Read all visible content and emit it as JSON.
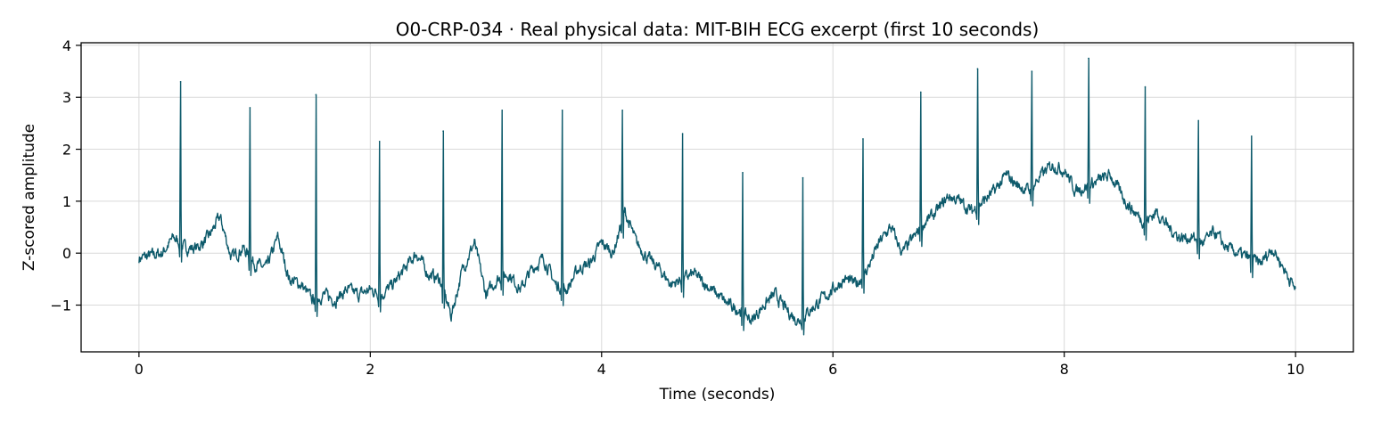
{
  "chart_data": {
    "type": "line",
    "title": "O0-CRP-034 · Real physical data: MIT-BIH ECG excerpt (first 10 seconds)",
    "xlabel": "Time (seconds)",
    "ylabel": "Z-scored amplitude",
    "xlim": [
      -0.5,
      10.5
    ],
    "ylim": [
      -1.9,
      4.05
    ],
    "grid": true,
    "line_color": "#0d5a6b",
    "x_ticks": [
      0,
      2,
      4,
      6,
      8,
      10
    ],
    "x_tick_labels": [
      "0",
      "2",
      "4",
      "6",
      "8",
      "10"
    ],
    "y_ticks": [
      -1,
      0,
      1,
      2,
      3,
      4
    ],
    "y_tick_labels": [
      "−1",
      "0",
      "1",
      "2",
      "3",
      "4"
    ],
    "baseline": {
      "x": [
        0.0,
        0.1,
        0.2,
        0.3,
        0.4,
        0.5,
        0.6,
        0.7,
        0.8,
        0.9,
        1.0,
        1.1,
        1.2,
        1.3,
        1.4,
        1.5,
        1.6,
        1.7,
        1.8,
        1.9,
        2.0,
        2.1,
        2.2,
        2.3,
        2.4,
        2.5,
        2.6,
        2.7,
        2.8,
        2.9,
        3.0,
        3.1,
        3.2,
        3.3,
        3.4,
        3.5,
        3.6,
        3.7,
        3.8,
        3.9,
        4.0,
        4.1,
        4.2,
        4.3,
        4.4,
        4.5,
        4.6,
        4.7,
        4.8,
        4.9,
        5.0,
        5.1,
        5.2,
        5.3,
        5.4,
        5.5,
        5.6,
        5.7,
        5.8,
        5.9,
        6.0,
        6.1,
        6.2,
        6.3,
        6.4,
        6.5,
        6.6,
        6.7,
        6.8,
        6.9,
        7.0,
        7.1,
        7.2,
        7.3,
        7.4,
        7.5,
        7.6,
        7.7,
        7.8,
        7.9,
        8.0,
        8.1,
        8.2,
        8.3,
        8.4,
        8.5,
        8.6,
        8.7,
        8.8,
        8.9,
        9.0,
        9.1,
        9.2,
        9.3,
        9.4,
        9.5,
        9.6,
        9.7,
        9.8,
        9.9,
        10.0
      ],
      "y": [
        -0.1,
        -0.05,
        0.0,
        0.3,
        0.1,
        0.1,
        0.3,
        0.7,
        -0.1,
        0.1,
        -0.2,
        -0.3,
        0.3,
        -0.5,
        -0.6,
        -0.9,
        -0.8,
        -0.9,
        -0.7,
        -0.8,
        -0.7,
        -0.8,
        -0.6,
        -0.3,
        0.0,
        -0.4,
        -0.5,
        -1.2,
        -0.3,
        0.2,
        -0.8,
        -0.5,
        -0.4,
        -0.7,
        -0.3,
        -0.1,
        -0.6,
        -0.7,
        -0.3,
        -0.2,
        0.2,
        0.0,
        0.8,
        0.2,
        -0.1,
        -0.3,
        -0.6,
        -0.5,
        -0.4,
        -0.6,
        -0.8,
        -1.0,
        -1.1,
        -1.3,
        -1.0,
        -0.8,
        -1.1,
        -1.3,
        -1.1,
        -0.9,
        -0.7,
        -0.5,
        -0.6,
        -0.3,
        0.2,
        0.5,
        0.0,
        0.3,
        0.6,
        0.8,
        1.1,
        1.0,
        0.8,
        1.0,
        1.2,
        1.5,
        1.3,
        1.2,
        1.5,
        1.7,
        1.6,
        1.2,
        1.3,
        1.4,
        1.5,
        1.1,
        0.8,
        0.6,
        0.8,
        0.5,
        0.3,
        0.3,
        0.2,
        0.4,
        0.1,
        0.0,
        -0.1,
        -0.2,
        0.1,
        -0.3,
        -0.7
      ]
    },
    "r_peaks": [
      {
        "x": 0.36,
        "y": 3.3
      },
      {
        "x": 0.96,
        "y": 2.8
      },
      {
        "x": 1.53,
        "y": 3.05
      },
      {
        "x": 2.08,
        "y": 2.15
      },
      {
        "x": 2.63,
        "y": 2.35
      },
      {
        "x": 3.14,
        "y": 2.75
      },
      {
        "x": 3.66,
        "y": 2.75
      },
      {
        "x": 4.18,
        "y": 2.75
      },
      {
        "x": 4.7,
        "y": 2.3
      },
      {
        "x": 5.22,
        "y": 1.55
      },
      {
        "x": 5.74,
        "y": 1.45
      },
      {
        "x": 6.26,
        "y": 2.2
      },
      {
        "x": 6.76,
        "y": 3.1
      },
      {
        "x": 7.25,
        "y": 3.55
      },
      {
        "x": 7.72,
        "y": 3.5
      },
      {
        "x": 8.21,
        "y": 3.75
      },
      {
        "x": 8.7,
        "y": 3.2
      },
      {
        "x": 9.16,
        "y": 2.55
      },
      {
        "x": 9.62,
        "y": 2.25
      }
    ]
  }
}
